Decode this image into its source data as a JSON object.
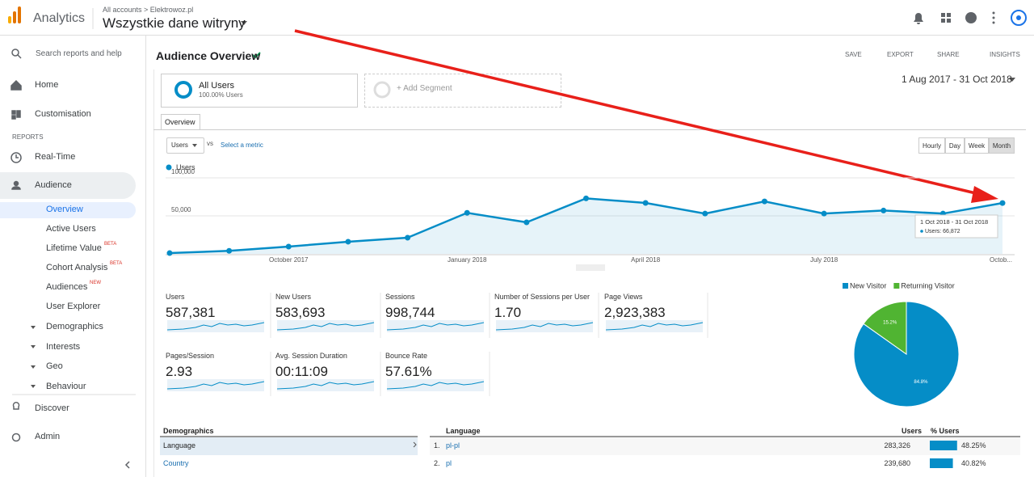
{
  "header": {
    "product": "Analytics",
    "breadcrumb": "All accounts > Elektrowoz.pl",
    "property": "Wszystkie dane witryny"
  },
  "sidebar": {
    "search": "Search reports and help",
    "nav": [
      "Home",
      "Customisation"
    ],
    "reports_heading": "REPORTS",
    "reports": [
      "Real-Time",
      "Audience"
    ],
    "audience_items": [
      {
        "label": "Overview"
      },
      {
        "label": "Active Users"
      },
      {
        "label": "Lifetime Value",
        "badge": "BETA"
      },
      {
        "label": "Cohort Analysis",
        "badge": "BETA"
      },
      {
        "label": "Audiences",
        "badge": "NEW"
      },
      {
        "label": "User Explorer"
      }
    ],
    "groups": [
      "Demographics",
      "Interests",
      "Geo",
      "Behaviour"
    ],
    "footer": [
      "Discover",
      "Admin"
    ]
  },
  "page": {
    "title": "Audience Overview",
    "actions": [
      "SAVE",
      "EXPORT",
      "SHARE",
      "INSIGHTS"
    ],
    "segment": {
      "name": "All Users",
      "detail": "100.00% Users"
    },
    "add_segment": "+ Add Segment",
    "date_range": "1 Aug 2017 - 31 Oct 2018",
    "tab": "Overview",
    "metric_select": "Users",
    "vs": "vs",
    "select_metric": "Select a metric",
    "granularity": [
      "Hourly",
      "Day",
      "Week",
      "Month"
    ]
  },
  "chart_data": [
    {
      "type": "line",
      "categories": [
        null,
        null,
        "October 2017",
        null,
        null,
        "January 2018",
        null,
        null,
        "April 2018",
        null,
        null,
        "July 2018",
        null,
        null,
        "Octob..."
      ],
      "series": [
        {
          "name": "Users",
          "color": "#058dc7",
          "values": [
            1000,
            4000,
            9600,
            16000,
            21300,
            54000,
            41500,
            73000,
            67000,
            53000,
            69000,
            53000,
            57000,
            53000,
            66872
          ]
        }
      ],
      "ylim": [
        0,
        100000
      ],
      "yticks": [
        {
          "value": 50000,
          "label": "50,000"
        },
        {
          "value": 100000,
          "label": "100,000"
        }
      ],
      "grid": true,
      "tooltip": {
        "title": "1 Oct 2018 - 31 Oct 2018",
        "text": "Users: 66,872"
      }
    },
    {
      "type": "pie",
      "categories": [
        "New Visitor",
        "Returning Visitor"
      ],
      "values": [
        84.8,
        15.2
      ],
      "value_labels": [
        "84.8%",
        "15.2%"
      ],
      "colors": [
        "#058dc7",
        "#50b432"
      ]
    }
  ],
  "metrics": [
    {
      "label": "Users",
      "value": "587,381"
    },
    {
      "label": "New Users",
      "value": "583,693"
    },
    {
      "label": "Sessions",
      "value": "998,744"
    },
    {
      "label": "Number of Sessions per User",
      "value": "1.70"
    },
    {
      "label": "Page Views",
      "value": "2,923,383"
    },
    {
      "label": "Pages/Session",
      "value": "2.93"
    },
    {
      "label": "Avg. Session Duration",
      "value": "00:11:09"
    },
    {
      "label": "Bounce Rate",
      "value": "57.61%"
    }
  ],
  "demographics": {
    "title": "Demographics",
    "rows": [
      "Language",
      "Country"
    ]
  },
  "language_table": {
    "headers": [
      "Language",
      "Users",
      "% Users"
    ],
    "rows": [
      {
        "rank": "1.",
        "name": "pl-pl",
        "users": "283,326",
        "pct": 48.25,
        "pct_label": "48.25%"
      },
      {
        "rank": "2.",
        "name": "pl",
        "users": "239,680",
        "pct": 40.82,
        "pct_label": "40.82%"
      }
    ]
  }
}
